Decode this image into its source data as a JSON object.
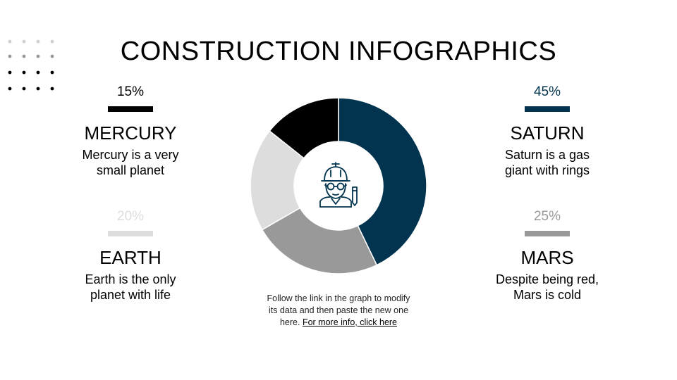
{
  "title": "CONSTRUCTION INFOGRAPHICS",
  "colors": {
    "saturn": "#02344f",
    "mars": "#999999",
    "earth": "#dddddd",
    "mercury": "#000000"
  },
  "items": {
    "mercury": {
      "percent": "15%",
      "name": "MERCURY",
      "description_line1": "Mercury is a very",
      "description_line2": "small planet"
    },
    "earth": {
      "percent": "20%",
      "name": "EARTH",
      "description_line1": "Earth is the only",
      "description_line2": "planet with life"
    },
    "saturn": {
      "percent": "45%",
      "name": "SATURN",
      "description_line1": "Saturn is a gas",
      "description_line2": "giant with rings"
    },
    "mars": {
      "percent": "25%",
      "name": "MARS",
      "description_line1": "Despite being red,",
      "description_line2": "Mars is cold"
    }
  },
  "note": {
    "line1": "Follow the link in the graph to modify",
    "line2": "its data and then paste the new one",
    "line3_prefix": "here. ",
    "link_text": "For more info, click here"
  },
  "center_icon": "engineer-icon",
  "chart_data": {
    "type": "pie",
    "categories": [
      "Saturn",
      "Mars",
      "Earth",
      "Mercury"
    ],
    "values": [
      45,
      25,
      20,
      15
    ],
    "colors": [
      "#02344f",
      "#999999",
      "#dddddd",
      "#000000"
    ],
    "donut": true,
    "start": "12 o'clock",
    "direction": "clockwise"
  }
}
